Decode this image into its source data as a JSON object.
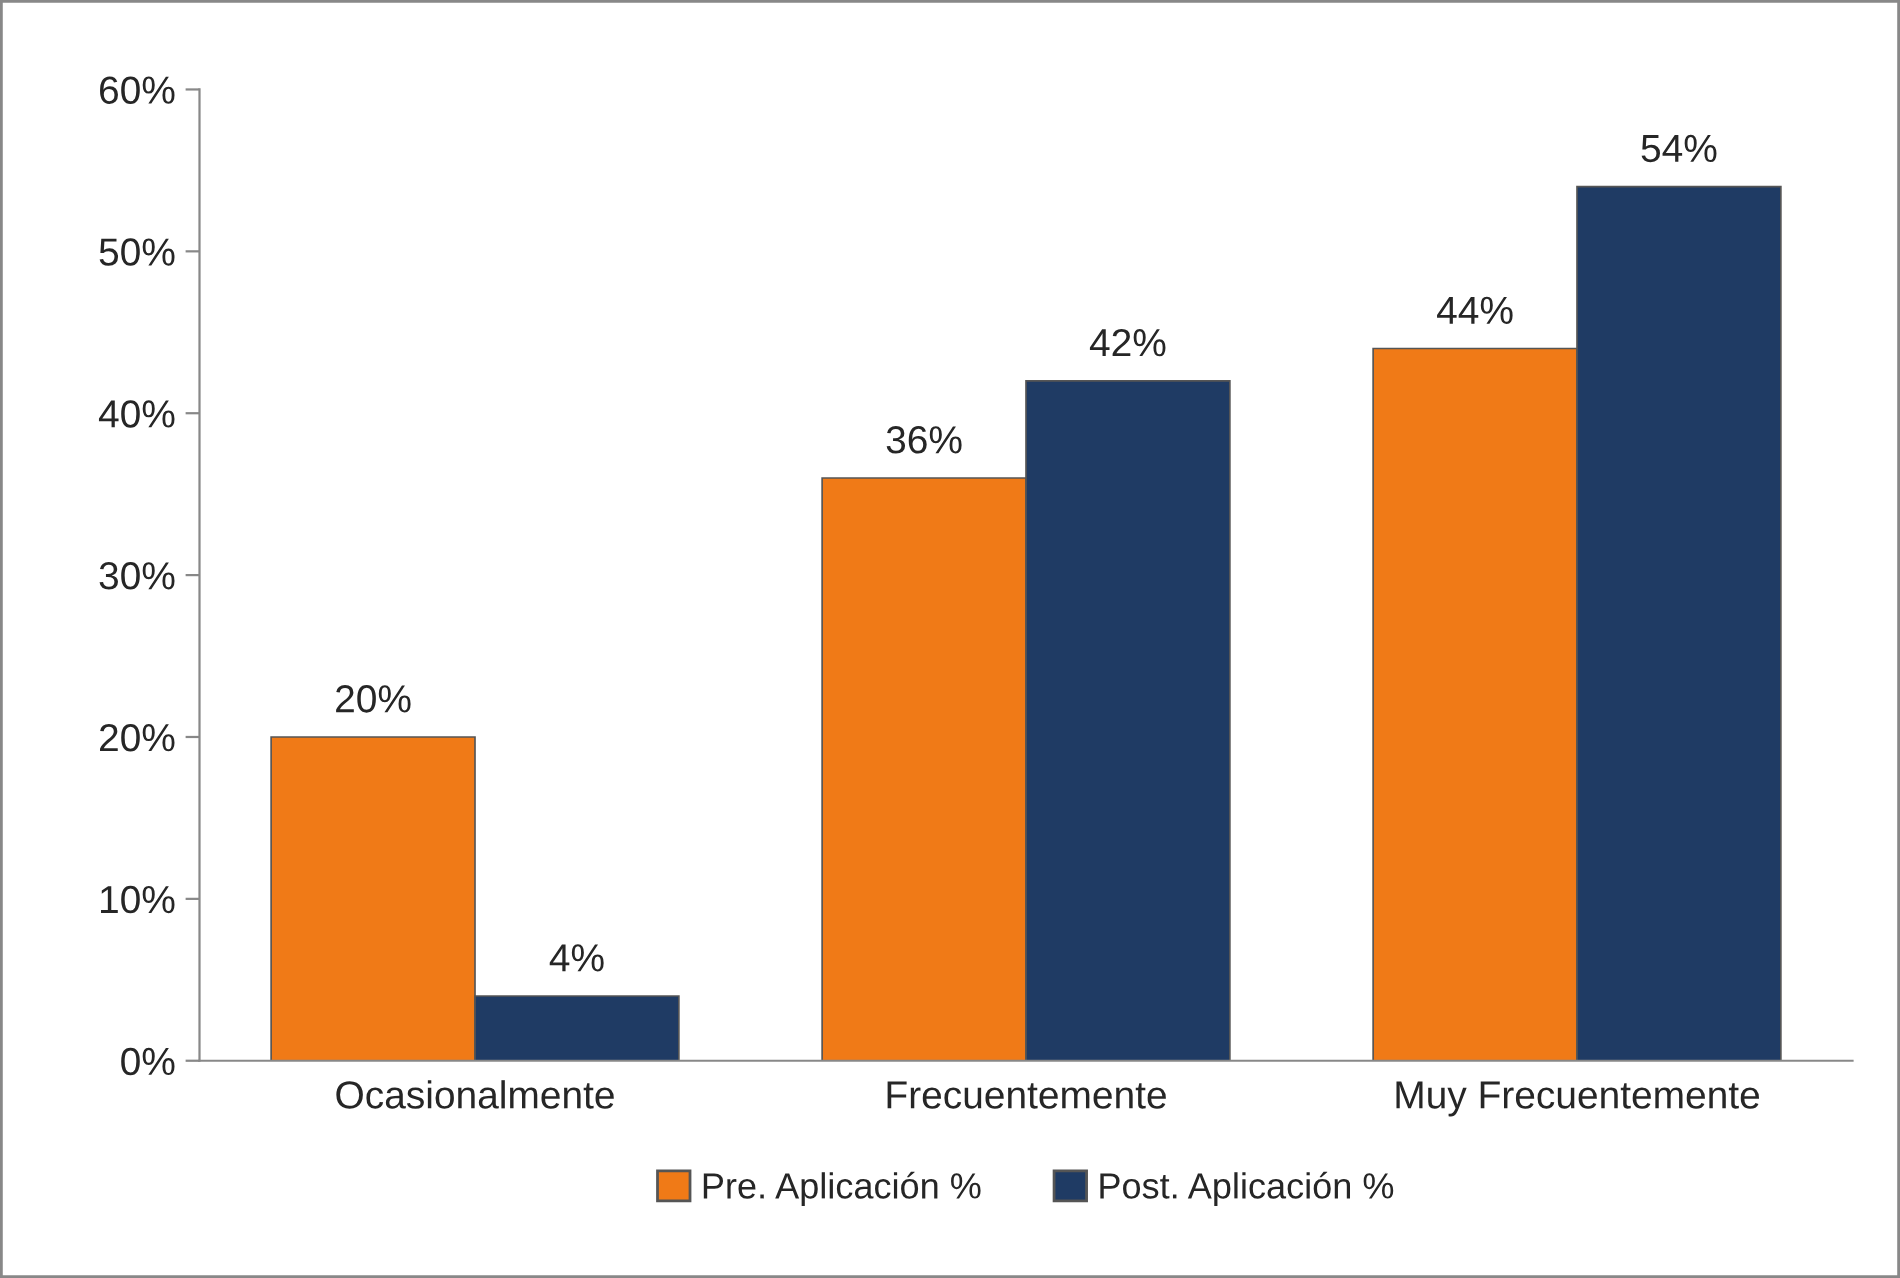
{
  "chart_data": {
    "type": "bar",
    "categories": [
      "Ocasionalmente",
      "Frecuentemente",
      "Muy Frecuentemente"
    ],
    "series": [
      {
        "name": "Pre. Aplicación %",
        "color": "#f07a17",
        "values": [
          20,
          36,
          44
        ],
        "value_labels": [
          "20%",
          "36%",
          "44%"
        ]
      },
      {
        "name": "Post. Aplicación %",
        "color": "#1f3b64",
        "values": [
          4,
          42,
          54
        ],
        "value_labels": [
          "4%",
          "42%",
          "54%"
        ]
      }
    ],
    "ylim": [
      0,
      60
    ],
    "yticks": [
      {
        "value": 0,
        "label": "0%"
      },
      {
        "value": 10,
        "label": "10%"
      },
      {
        "value": 20,
        "label": "20%"
      },
      {
        "value": 30,
        "label": "30%"
      },
      {
        "value": 40,
        "label": "40%"
      },
      {
        "value": 50,
        "label": "50%"
      },
      {
        "value": 60,
        "label": "60%"
      }
    ],
    "grid": false,
    "legend": "bottom"
  }
}
